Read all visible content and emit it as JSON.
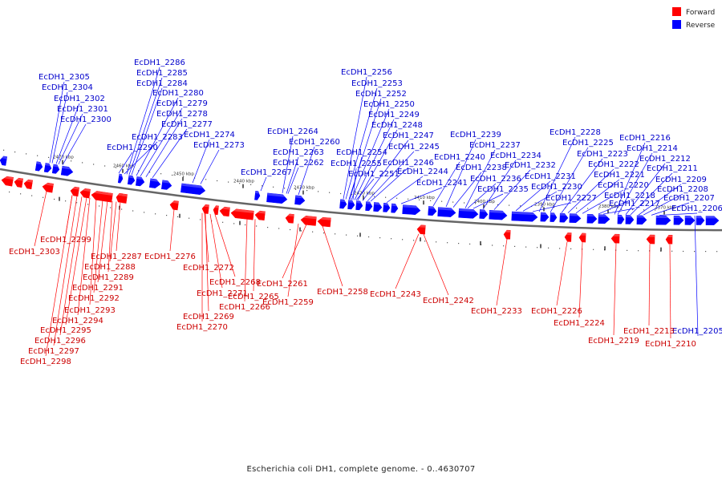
{
  "legend": {
    "forward": {
      "label": "Forward",
      "color": "#ff0000"
    },
    "reverse": {
      "label": "Reverse",
      "color": "#0000ff"
    }
  },
  "caption": "Escherichia coli DH1, complete genome. - 0..4630707",
  "ticks": [
    "2470 kbp",
    "2460 kbp",
    "2450 kbp",
    "2440 kbp",
    "2430 kbp",
    "2420 kbp",
    "2410 kbp",
    "2400 kbp",
    "2390 kbp",
    "2380 kbp",
    "2370 kbp"
  ],
  "reverse_labels": [
    "EcDH1_2305",
    "EcDH1_2304",
    "EcDH1_2302",
    "EcDH1_2301",
    "EcDH1_2300",
    "EcDH1_2286",
    "EcDH1_2285",
    "EcDH1_2284",
    "EcDH1_2280",
    "EcDH1_2279",
    "EcDH1_2278",
    "EcDH1_2277",
    "EcDH1_2274",
    "EcDH1_2273",
    "EcDH1_2283",
    "EcDH1_2290",
    "EcDH1_2264",
    "EcDH1_2260",
    "EcDH1_2263",
    "EcDH1_2262",
    "EcDH1_2267",
    "EcDH1_2256",
    "EcDH1_2253",
    "EcDH1_2252",
    "EcDH1_2250",
    "EcDH1_2249",
    "EcDH1_2248",
    "EcDH1_2247",
    "EcDH1_2245",
    "EcDH1_2254",
    "EcDH1_2255",
    "EcDH1_2246",
    "EcDH1_2251",
    "EcDH1_2244",
    "EcDH1_2241",
    "EcDH1_2239",
    "EcDH1_2237",
    "EcDH1_2234",
    "EcDH1_2240",
    "EcDH1_2238",
    "EcDH1_2236",
    "EcDH1_2235",
    "EcDH1_2232",
    "EcDH1_2231",
    "EcDH1_2230",
    "EcDH1_2227",
    "EcDH1_2228",
    "EcDH1_2225",
    "EcDH1_2223",
    "EcDH1_2222",
    "EcDH1_2221",
    "EcDH1_2220",
    "EcDH1_2218",
    "EcDH1_2217",
    "EcDH1_2216",
    "EcDH1_2214",
    "EcDH1_2212",
    "EcDH1_2211",
    "EcDH1_2209",
    "EcDH1_2208",
    "EcDH1_2207",
    "EcDH1_2206",
    "EcDH1_2205"
  ],
  "forward_labels": [
    "EcDH1_2303",
    "EcDH1_2299",
    "EcDH1_2287",
    "EcDH1_2288",
    "EcDH1_2289",
    "EcDH1_2291",
    "EcDH1_2292",
    "EcDH1_2293",
    "EcDH1_2294",
    "EcDH1_2295",
    "EcDH1_2296",
    "EcDH1_2297",
    "EcDH1_2298",
    "EcDH1_2276",
    "EcDH1_2272",
    "EcDH1_2268",
    "EcDH1_2271",
    "EcDH1_2265",
    "EcDH1_2266",
    "EcDH1_2269",
    "EcDH1_2270",
    "EcDH1_2261",
    "EcDH1_2259",
    "EcDH1_2258",
    "EcDH1_2243",
    "EcDH1_2242",
    "EcDH1_2233",
    "EcDH1_2226",
    "EcDH1_2224",
    "EcDH1_2219",
    "EcDH1_2213",
    "EcDH1_2210"
  ]
}
